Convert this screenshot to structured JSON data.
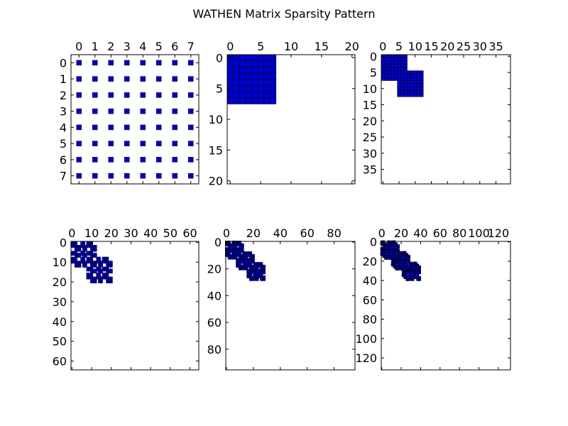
{
  "figure": {
    "title": "WATHEN Matrix Sparsity Pattern"
  },
  "colors": {
    "marker_fill": "#0000cc",
    "marker_edge": "#000000",
    "axes": "#000000",
    "background": "#ffffff"
  },
  "chart_data": [
    {
      "type": "scatter",
      "description_key": "spy",
      "matrix_size": 8,
      "xlim": [
        -0.5,
        7.5
      ],
      "ylim": [
        7.5,
        -0.5
      ],
      "x_ticks": [
        0,
        1,
        2,
        3,
        4,
        5,
        6,
        7
      ],
      "y_ticks": [
        0,
        1,
        2,
        3,
        4,
        5,
        6,
        7
      ],
      "pattern": "dense"
    },
    {
      "type": "scatter",
      "description_key": "spy",
      "matrix_size": 21,
      "nx": 1,
      "ny": 1,
      "xlim": [
        -0.5,
        20.5
      ],
      "ylim": [
        20.5,
        -0.5
      ],
      "x_ticks": [
        0,
        5,
        10,
        15,
        20
      ],
      "y_ticks": [
        0,
        5,
        10,
        15,
        20
      ],
      "pattern": "wathen"
    },
    {
      "type": "scatter",
      "description_key": "spy",
      "matrix_size": 40,
      "nx": 1,
      "ny": 2,
      "xlim": [
        -0.5,
        39.5
      ],
      "ylim": [
        39.5,
        -0.5
      ],
      "x_ticks": [
        0,
        5,
        10,
        15,
        20,
        25,
        30,
        35
      ],
      "y_ticks": [
        0,
        5,
        10,
        15,
        20,
        25,
        30,
        35
      ],
      "pattern": "wathen"
    },
    {
      "type": "scatter",
      "description_key": "spy",
      "matrix_size": 65,
      "nx": 2,
      "ny": 2,
      "xlim": [
        -0.5,
        64.5
      ],
      "ylim": [
        64.5,
        -0.5
      ],
      "x_ticks": [
        0,
        10,
        20,
        30,
        40,
        50,
        60
      ],
      "y_ticks": [
        0,
        10,
        20,
        30,
        40,
        50,
        60
      ],
      "pattern": "wathen"
    },
    {
      "type": "scatter",
      "description_key": "spy",
      "matrix_size": 96,
      "nx": 2,
      "ny": 3,
      "xlim": [
        -0.5,
        95.5
      ],
      "ylim": [
        95.5,
        -0.5
      ],
      "x_ticks": [
        0,
        20,
        40,
        60,
        80
      ],
      "y_ticks": [
        0,
        20,
        40,
        60,
        80
      ],
      "pattern": "wathen"
    },
    {
      "type": "scatter",
      "description_key": "spy",
      "matrix_size": 133,
      "nx": 3,
      "ny": 3,
      "xlim": [
        -0.5,
        132.5
      ],
      "ylim": [
        132.5,
        -0.5
      ],
      "x_ticks": [
        0,
        20,
        40,
        60,
        80,
        100,
        120
      ],
      "y_ticks": [
        0,
        20,
        40,
        60,
        80,
        100,
        120
      ],
      "pattern": "wathen"
    }
  ]
}
